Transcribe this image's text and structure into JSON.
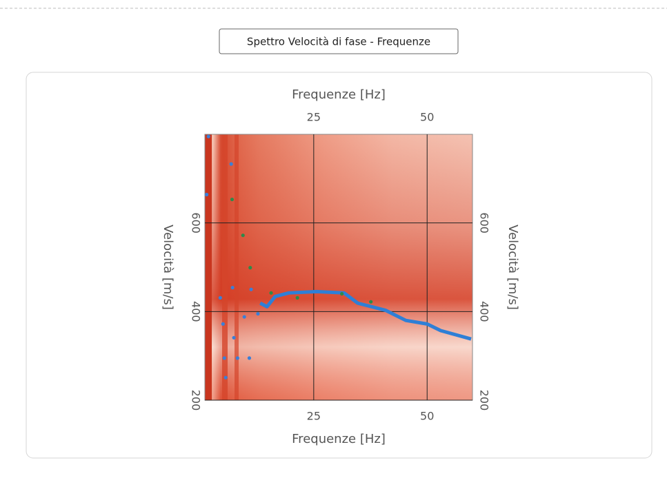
{
  "chart_data": {
    "type": "dispersion",
    "title": "Spettro Velocità di fase - Frequenze",
    "xlabel": "Frequenze [Hz]",
    "x2label": "Frequenze [Hz]",
    "ylabel": "Velocità [m/s]",
    "y2label": "Velocità [m/s]",
    "xlim": [
      1,
      60
    ],
    "ylim": [
      200,
      800
    ],
    "xticks": [
      25,
      50
    ],
    "yticks": [
      200,
      400,
      600
    ],
    "grid": true,
    "series": [
      {
        "kind": "line",
        "color": "#2f7fd6",
        "x": [
          13.2,
          14.7,
          16.5,
          19.5,
          25.6,
          31.7,
          34.7,
          40.8,
          45.3,
          50,
          53,
          59.7
        ],
        "values": [
          419,
          411,
          434,
          442,
          445,
          442,
          419,
          403,
          380,
          372,
          357,
          338
        ]
      },
      {
        "kind": "points",
        "color": "#2e8a4a",
        "x": [
          7,
          9.4,
          11,
          15.6,
          21.4,
          31.2,
          37.6
        ],
        "values": [
          653,
          572,
          499,
          442,
          431,
          440,
          422
        ]
      },
      {
        "kind": "points",
        "color": "#3a7fd8",
        "x": [
          1.8,
          1.4,
          6.8,
          7.1,
          4.4,
          5,
          5.3,
          5.6,
          7.4,
          8.2,
          9.7,
          11.2,
          12.7,
          10.8
        ],
        "values": [
          795,
          664,
          733,
          454,
          431,
          372,
          295,
          251,
          341,
          295,
          388,
          450,
          395,
          295
        ]
      }
    ]
  }
}
